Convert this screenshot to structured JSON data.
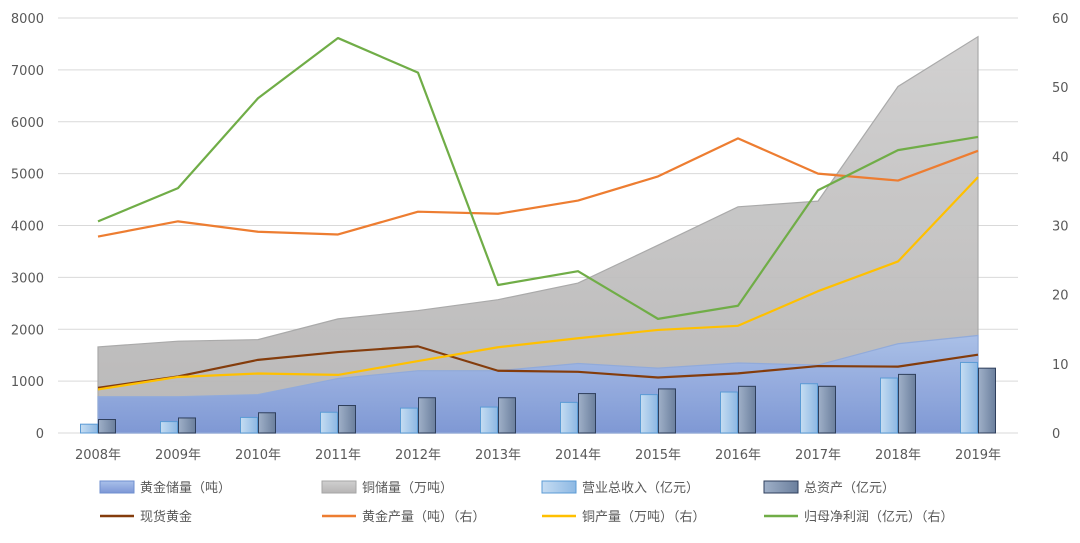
{
  "chart_data": {
    "type": "combo",
    "categories": [
      "2008年",
      "2009年",
      "2010年",
      "2011年",
      "2012年",
      "2013年",
      "2014年",
      "2015年",
      "2016年",
      "2017年",
      "2018年",
      "2019年"
    ],
    "y_left": {
      "range": [
        0,
        8000
      ],
      "ticks": [
        "0",
        "1000",
        "2000",
        "3000",
        "4000",
        "5000",
        "6000",
        "7000",
        "8000"
      ]
    },
    "y_right": {
      "range": [
        0,
        60
      ],
      "ticks": [
        "0",
        "10",
        "20",
        "30",
        "40",
        "50",
        "60"
      ]
    },
    "grid": true,
    "legend_position": "bottom",
    "series": [
      {
        "name": "黄金储量（吨）",
        "type": "area",
        "axis": "left",
        "color": "#8faadc",
        "values": [
          700,
          700,
          740,
          1050,
          1200,
          1200,
          1340,
          1250,
          1350,
          1310,
          1720,
          1880
        ]
      },
      {
        "name": "铜储量（万吨）",
        "type": "area",
        "axis": "left",
        "color": "#bfbfbf",
        "values": [
          1660,
          1770,
          1800,
          2200,
          2360,
          2570,
          2890,
          3620,
          4360,
          4470,
          6680,
          7640
        ]
      },
      {
        "name": "营业总收入（亿元）",
        "type": "bar",
        "axis": "left",
        "color": "#9dc3e6",
        "values": [
          170,
          220,
          300,
          400,
          480,
          500,
          590,
          740,
          790,
          950,
          1060,
          1360
        ]
      },
      {
        "name": "总资产（亿元）",
        "type": "bar",
        "axis": "left",
        "color": "#8497b0",
        "values": [
          260,
          290,
          390,
          530,
          680,
          680,
          760,
          850,
          900,
          900,
          1130,
          1250
        ]
      },
      {
        "name": "现货黄金",
        "type": "line",
        "axis": "left",
        "color": "#843c0c",
        "values": [
          870,
          1090,
          1410,
          1560,
          1670,
          1200,
          1180,
          1070,
          1150,
          1290,
          1280,
          1510
        ]
      },
      {
        "name": "黄金产量（吨）（右）",
        "type": "line",
        "axis": "right",
        "color": "#ed7d31",
        "values": [
          28.4,
          30.6,
          29.1,
          28.7,
          32.0,
          31.7,
          33.6,
          37.1,
          42.6,
          37.5,
          36.5,
          40.8
        ]
      },
      {
        "name": "铜产量（万吨）（右）",
        "type": "line",
        "axis": "right",
        "color": "#ffc000",
        "values": [
          6.3,
          8.1,
          8.6,
          8.4,
          10.4,
          12.4,
          13.7,
          14.9,
          15.5,
          20.5,
          24.8,
          37.0
        ]
      },
      {
        "name": "归母净利润（亿元）（右）",
        "type": "line",
        "axis": "right",
        "color": "#70ad47",
        "values": [
          30.6,
          35.4,
          48.4,
          57.1,
          52.1,
          21.4,
          23.4,
          16.5,
          18.4,
          35.1,
          40.9,
          42.8
        ]
      }
    ]
  }
}
